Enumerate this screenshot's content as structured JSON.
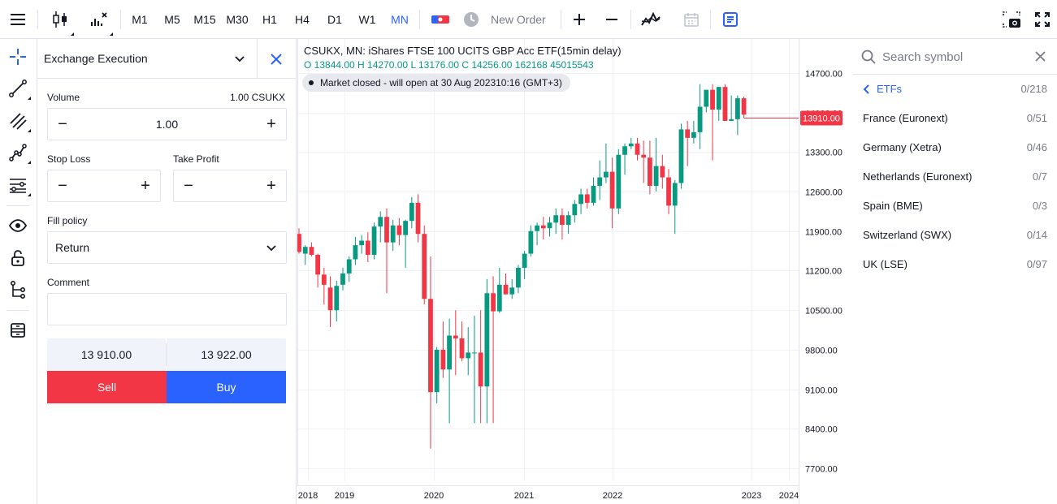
{
  "toolbar": {
    "timeframes": [
      "M1",
      "M5",
      "M15",
      "M30",
      "H1",
      "H4",
      "D1",
      "W1",
      "MN"
    ],
    "active_timeframe": "MN",
    "new_order_label": "New Order"
  },
  "order_panel": {
    "execution_type": "Exchange Execution",
    "volume_label": "Volume",
    "volume_hint": "1.00 CSUKX",
    "volume_value": "1.00",
    "stop_loss_label": "Stop Loss",
    "take_profit_label": "Take Profit",
    "fill_policy_label": "Fill policy",
    "fill_policy_value": "Return",
    "comment_label": "Comment",
    "sell_price": "13 910.00",
    "buy_price": "13 922.00",
    "sell_label": "Sell",
    "buy_label": "Buy"
  },
  "chart": {
    "title": "CSUKX, MN: iShares FTSE 100 UCITS GBP Acc ETF(15min delay)",
    "ohlc": "O 13844.00 H 14270.00 L 13176.00 C 14256.00 162168 45015543",
    "market_status": "Market closed - will open at 30 Aug 202310:16 (GMT+3)",
    "current_price_label": "13910.00",
    "colors": {
      "up": "#089981",
      "down": "#f23645"
    }
  },
  "chart_data": {
    "type": "candlestick",
    "y_ticks": [
      "14700.00",
      "14000.00",
      "13300.00",
      "12600.00",
      "11900.00",
      "11200.00",
      "10500.00",
      "9800.00",
      "9100.00",
      "8400.00",
      "7700.00"
    ],
    "x_ticks": [
      "2018",
      "2019",
      "2020",
      "2021",
      "2022",
      "2023",
      "2024"
    ],
    "ylim": [
      7400,
      15300
    ],
    "current_price": 13910,
    "candles": [
      [
        11850,
        11950,
        11500,
        11530
      ],
      [
        11500,
        11650,
        11300,
        11620
      ],
      [
        11620,
        11700,
        11450,
        11480
      ],
      [
        11480,
        11500,
        10900,
        11130
      ],
      [
        11130,
        11250,
        10600,
        10950
      ],
      [
        10900,
        11100,
        10200,
        10500
      ],
      [
        10500,
        11020,
        10300,
        10930
      ],
      [
        10950,
        11250,
        10850,
        11150
      ],
      [
        11150,
        11450,
        11000,
        11400
      ],
      [
        11400,
        11800,
        11300,
        11650
      ],
      [
        11650,
        11830,
        11500,
        11730
      ],
      [
        11730,
        11880,
        11350,
        11480
      ],
      [
        11480,
        12050,
        11400,
        11980
      ],
      [
        11980,
        12250,
        11700,
        12150
      ],
      [
        12150,
        12300,
        10800,
        11700
      ],
      [
        11700,
        12100,
        11550,
        12000
      ],
      [
        12000,
        12130,
        11650,
        11830
      ],
      [
        11830,
        12100,
        11250,
        12080
      ],
      [
        12080,
        12500,
        11950,
        12400
      ],
      [
        12400,
        12550,
        11700,
        11850
      ],
      [
        11850,
        12000,
        10600,
        10700
      ],
      [
        10700,
        11450,
        8050,
        9050
      ],
      [
        9050,
        9850,
        8850,
        9800
      ],
      [
        9800,
        10300,
        9300,
        9450
      ],
      [
        9450,
        10350,
        8500,
        10050
      ],
      [
        10050,
        10500,
        9350,
        10000
      ],
      [
        10000,
        10300,
        9600,
        9650
      ],
      [
        9650,
        10200,
        9350,
        9750
      ],
      [
        9750,
        10400,
        8500,
        9750
      ],
      [
        9750,
        10500,
        8500,
        9150
      ],
      [
        9150,
        11050,
        8500,
        10800
      ],
      [
        10800,
        11100,
        8500,
        10480
      ],
      [
        10480,
        11250,
        10450,
        10950
      ],
      [
        10950,
        11150,
        10800,
        10780
      ],
      [
        10780,
        11050,
        10700,
        10900
      ],
      [
        10900,
        11300,
        10800,
        11250
      ],
      [
        11250,
        11550,
        11050,
        11500
      ],
      [
        11500,
        12000,
        11450,
        11900
      ],
      [
        11900,
        12050,
        11650,
        12000
      ],
      [
        12000,
        12150,
        11750,
        11950
      ],
      [
        11950,
        12150,
        11800,
        12050
      ],
      [
        12050,
        12300,
        11850,
        12180
      ],
      [
        12180,
        12300,
        11750,
        12010
      ],
      [
        12010,
        12250,
        11850,
        12180
      ],
      [
        12180,
        12450,
        12050,
        12380
      ],
      [
        12380,
        12650,
        12200,
        12550
      ],
      [
        12550,
        12650,
        12300,
        12400
      ],
      [
        12400,
        12850,
        12350,
        12700
      ],
      [
        12700,
        13150,
        12450,
        12850
      ],
      [
        12850,
        13450,
        12750,
        12950
      ],
      [
        12950,
        13200,
        11950,
        12300
      ],
      [
        12300,
        13350,
        12200,
        13250
      ],
      [
        13250,
        13450,
        12900,
        13400
      ],
      [
        13400,
        13550,
        13350,
        13450
      ],
      [
        13450,
        13550,
        13150,
        13250
      ],
      [
        13250,
        13500,
        12750,
        13200
      ],
      [
        13200,
        13500,
        12550,
        12700
      ],
      [
        12700,
        13550,
        12600,
        13050
      ],
      [
        13050,
        13250,
        12650,
        12850
      ],
      [
        12850,
        13000,
        12200,
        12350
      ],
      [
        12350,
        12800,
        11850,
        12750
      ],
      [
        12750,
        13800,
        12650,
        13700
      ],
      [
        13700,
        13850,
        13050,
        13550
      ],
      [
        13550,
        13850,
        13450,
        13650
      ],
      [
        13650,
        14500,
        13350,
        14100
      ],
      [
        14100,
        14400,
        14000,
        14400
      ],
      [
        14400,
        14500,
        13150,
        14050
      ],
      [
        14050,
        14450,
        13850,
        14450
      ],
      [
        14450,
        14500,
        13850,
        13850
      ],
      [
        13850,
        14300,
        13850,
        13880
      ],
      [
        13880,
        14300,
        13600,
        14250
      ],
      [
        14250,
        14280,
        13900,
        13960
      ]
    ]
  },
  "watchlist": {
    "search_placeholder": "Search symbol",
    "group_title": "ETFs",
    "group_count": "0/218",
    "items": [
      {
        "name": "France (Euronext)",
        "count": "0/51"
      },
      {
        "name": "Germany (Xetra)",
        "count": "0/46"
      },
      {
        "name": "Netherlands (Euronext)",
        "count": "0/7"
      },
      {
        "name": "Spain (BME)",
        "count": "0/3"
      },
      {
        "name": "Switzerland (SWX)",
        "count": "0/14"
      },
      {
        "name": "UK (LSE)",
        "count": "0/97"
      }
    ]
  }
}
